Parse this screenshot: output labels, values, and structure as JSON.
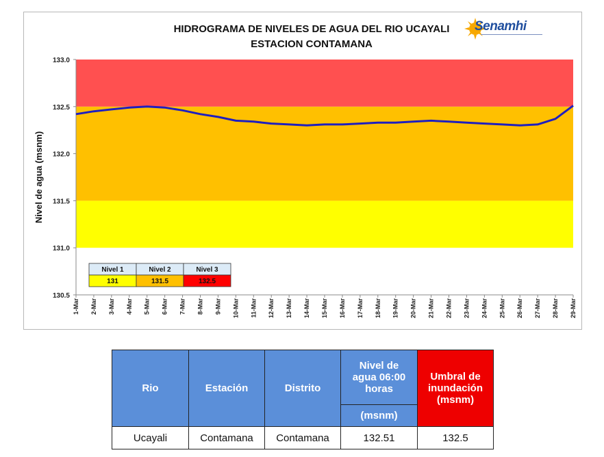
{
  "chart_title_line1": "HIDROGRAMA DE NIVELES DE AGUA DEL RIO UCAYALI",
  "chart_title_line2": "ESTACION CONTAMANA",
  "logo_text": "Senamhi",
  "chart_data": {
    "type": "line",
    "title": "HIDROGRAMA DE NIVELES DE AGUA DEL RIO UCAYALI — ESTACION CONTAMANA",
    "ylabel": "Nivel de agua  (msnm)",
    "ylim": [
      130.5,
      133.0
    ],
    "yticks": [
      "130.5",
      "131.0",
      "131.5",
      "132.0",
      "132.5",
      "133.0"
    ],
    "x": [
      "1-Mar",
      "2-Mar",
      "3-Mar",
      "4-Mar",
      "5-Mar",
      "6-Mar",
      "7-Mar",
      "8-Mar",
      "9-Mar",
      "10-Mar",
      "11-Mar",
      "12-Mar",
      "13-Mar",
      "14-Mar",
      "15-Mar",
      "16-Mar",
      "17-Mar",
      "18-Mar",
      "19-Mar",
      "20-Mar",
      "21-Mar",
      "22-Mar",
      "23-Mar",
      "24-Mar",
      "25-Mar",
      "26-Mar",
      "27-Mar",
      "28-Mar",
      "29-Mar"
    ],
    "series": [
      {
        "color": "#1f1fbf",
        "values": [
          132.42,
          132.45,
          132.47,
          132.49,
          132.5,
          132.49,
          132.46,
          132.42,
          132.39,
          132.35,
          132.34,
          132.32,
          132.31,
          132.3,
          132.31,
          132.31,
          132.32,
          132.33,
          132.33,
          132.34,
          132.35,
          132.34,
          132.33,
          132.32,
          132.31,
          132.3,
          132.31,
          132.37,
          132.51
        ]
      }
    ],
    "bands": [
      {
        "from": 131.0,
        "to": 131.5,
        "color": "#ffff00"
      },
      {
        "from": 131.5,
        "to": 132.5,
        "color": "#ffc000"
      },
      {
        "from": 132.5,
        "to": 133.0,
        "color": "#ff5050"
      }
    ],
    "legend_table": {
      "headers": [
        "Nivel 1",
        "Nivel 2",
        "Nivel 3"
      ],
      "values": [
        "131",
        "131.5",
        "132.5"
      ],
      "colors": [
        "#ffff00",
        "#ffc000",
        "#ff0000"
      ],
      "header_bg": "#dcebf7"
    },
    "grid": false
  },
  "table": {
    "headers": {
      "rio": "Rio",
      "estacion": "Estación",
      "distrito": "Distrito",
      "nivel": "Nivel de agua 06:00 horas",
      "nivel_unit": "(msnm)",
      "umbral": "Umbral de inundación (msnm)"
    },
    "row": {
      "rio": "Ucayali",
      "estacion": "Contamana",
      "distrito": "Contamana",
      "nivel": "132.51",
      "umbral": "132.5"
    }
  }
}
